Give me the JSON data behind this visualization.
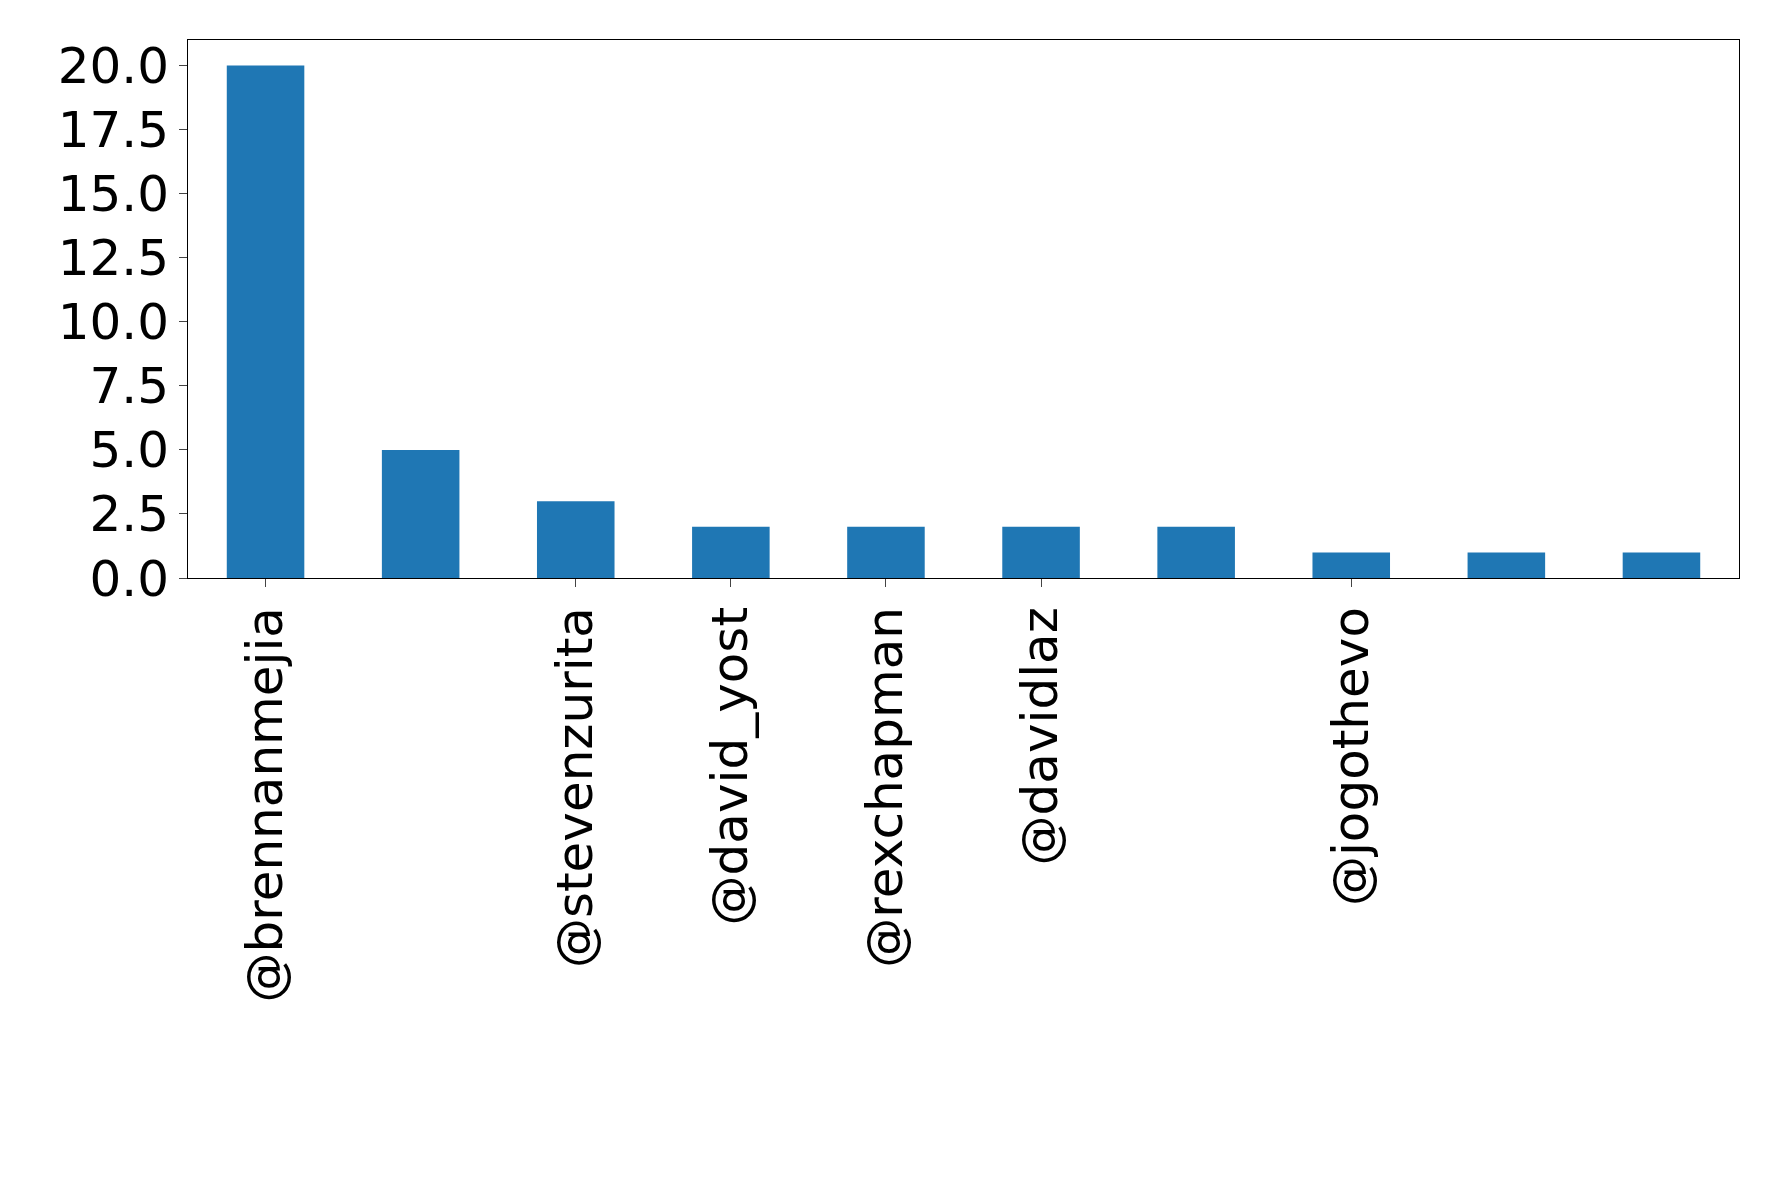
{
  "chart_data": {
    "type": "bar",
    "categories": [
      "@brennanmejia",
      null,
      "@stevenzurita",
      "@david_yost",
      "@rexchapman",
      "@davidlaz",
      null,
      "@jogothevo",
      null,
      null
    ],
    "values": [
      20,
      5,
      3,
      2,
      2,
      2,
      2,
      1,
      1,
      1
    ],
    "color": "#1f77b4",
    "ylim": [
      0,
      21
    ],
    "yticks": [
      {
        "value": 0,
        "label": "0.0"
      },
      {
        "value": 2.5,
        "label": "2.5"
      },
      {
        "value": 5,
        "label": "5.0"
      },
      {
        "value": 7.5,
        "label": "7.5"
      },
      {
        "value": 10,
        "label": "10.0"
      },
      {
        "value": 12.5,
        "label": "12.5"
      },
      {
        "value": 15,
        "label": "15.0"
      },
      {
        "value": 17.5,
        "label": "17.5"
      },
      {
        "value": 20,
        "label": "20.0"
      }
    ],
    "grid": false,
    "legend": false
  }
}
